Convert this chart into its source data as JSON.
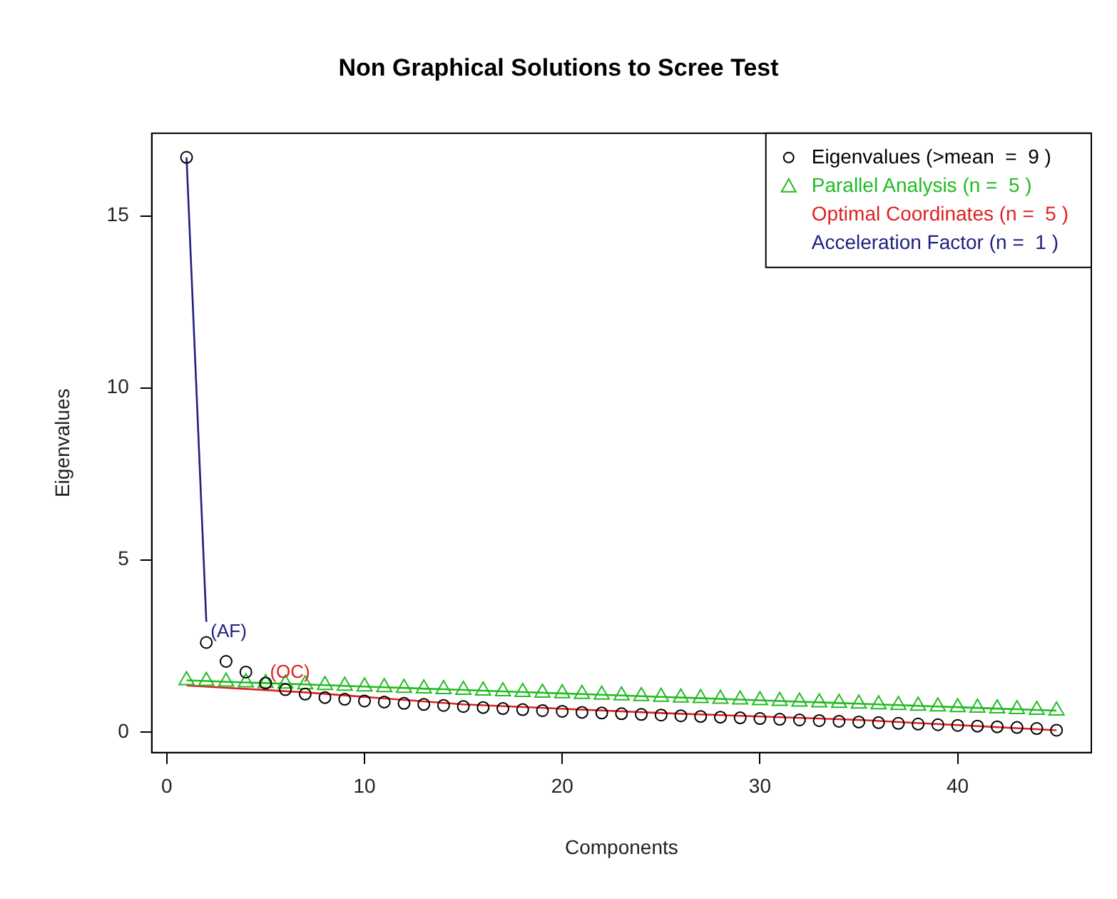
{
  "chart_data": {
    "type": "line",
    "title": "Non Graphical Solutions to Scree Test",
    "xlabel": "Components",
    "ylabel": "Eigenvalues",
    "x": [
      1,
      2,
      3,
      4,
      5,
      6,
      7,
      8,
      9,
      10,
      11,
      12,
      13,
      14,
      15,
      16,
      17,
      18,
      19,
      20,
      21,
      22,
      23,
      24,
      25,
      26,
      27,
      28,
      29,
      30,
      31,
      32,
      33,
      34,
      35,
      36,
      37,
      38,
      39,
      40,
      41,
      42,
      43,
      44,
      45
    ],
    "series": [
      {
        "name": "Eigenvalues (>mean  =  9 )",
        "type": "scatter",
        "marker": "circle",
        "color": "#000000",
        "values": [
          16.7,
          2.6,
          2.05,
          1.74,
          1.42,
          1.23,
          1.1,
          1.0,
          0.95,
          0.9,
          0.87,
          0.83,
          0.8,
          0.77,
          0.74,
          0.71,
          0.68,
          0.65,
          0.62,
          0.6,
          0.57,
          0.55,
          0.53,
          0.51,
          0.49,
          0.47,
          0.45,
          0.43,
          0.41,
          0.39,
          0.37,
          0.35,
          0.33,
          0.31,
          0.29,
          0.27,
          0.25,
          0.23,
          0.21,
          0.19,
          0.17,
          0.15,
          0.13,
          0.1,
          0.05
        ]
      },
      {
        "name": "Parallel Analysis (n =  5 )",
        "type": "line",
        "marker": "triangle",
        "color": "#22bb22",
        "values": [
          1.5,
          1.48,
          1.46,
          1.44,
          1.42,
          1.4,
          1.38,
          1.36,
          1.34,
          1.32,
          1.3,
          1.28,
          1.26,
          1.24,
          1.22,
          1.2,
          1.18,
          1.16,
          1.14,
          1.12,
          1.1,
          1.08,
          1.06,
          1.04,
          1.02,
          1.0,
          0.98,
          0.96,
          0.94,
          0.92,
          0.9,
          0.88,
          0.86,
          0.84,
          0.82,
          0.8,
          0.78,
          0.76,
          0.74,
          0.72,
          0.7,
          0.68,
          0.66,
          0.64,
          0.62
        ]
      },
      {
        "name": "Optimal Coordinates (n =  5 )",
        "type": "line",
        "marker": "none",
        "color": "#dd2222",
        "x": [
          1,
          7,
          15,
          25,
          35,
          45
        ],
        "values": [
          1.35,
          1.15,
          0.8,
          0.55,
          0.35,
          0.05
        ]
      },
      {
        "name": "Acceleration Factor (n =  1 )",
        "type": "line",
        "marker": "none",
        "color": "#202080",
        "x": [
          1,
          2
        ],
        "values": [
          16.7,
          3.2
        ]
      }
    ],
    "annotations": [
      {
        "text": "(AF)",
        "x": 2,
        "y": 2.6
      },
      {
        "text": "(OC)",
        "x": 5,
        "y": 1.42
      }
    ],
    "xlim": [
      -0.76,
      46.76
    ],
    "ylim": [
      -0.6,
      17.4
    ],
    "xticks": [
      0,
      10,
      20,
      30,
      40
    ],
    "yticks": [
      0,
      5,
      10,
      15
    ],
    "legend": "top right",
    "grid": false
  }
}
